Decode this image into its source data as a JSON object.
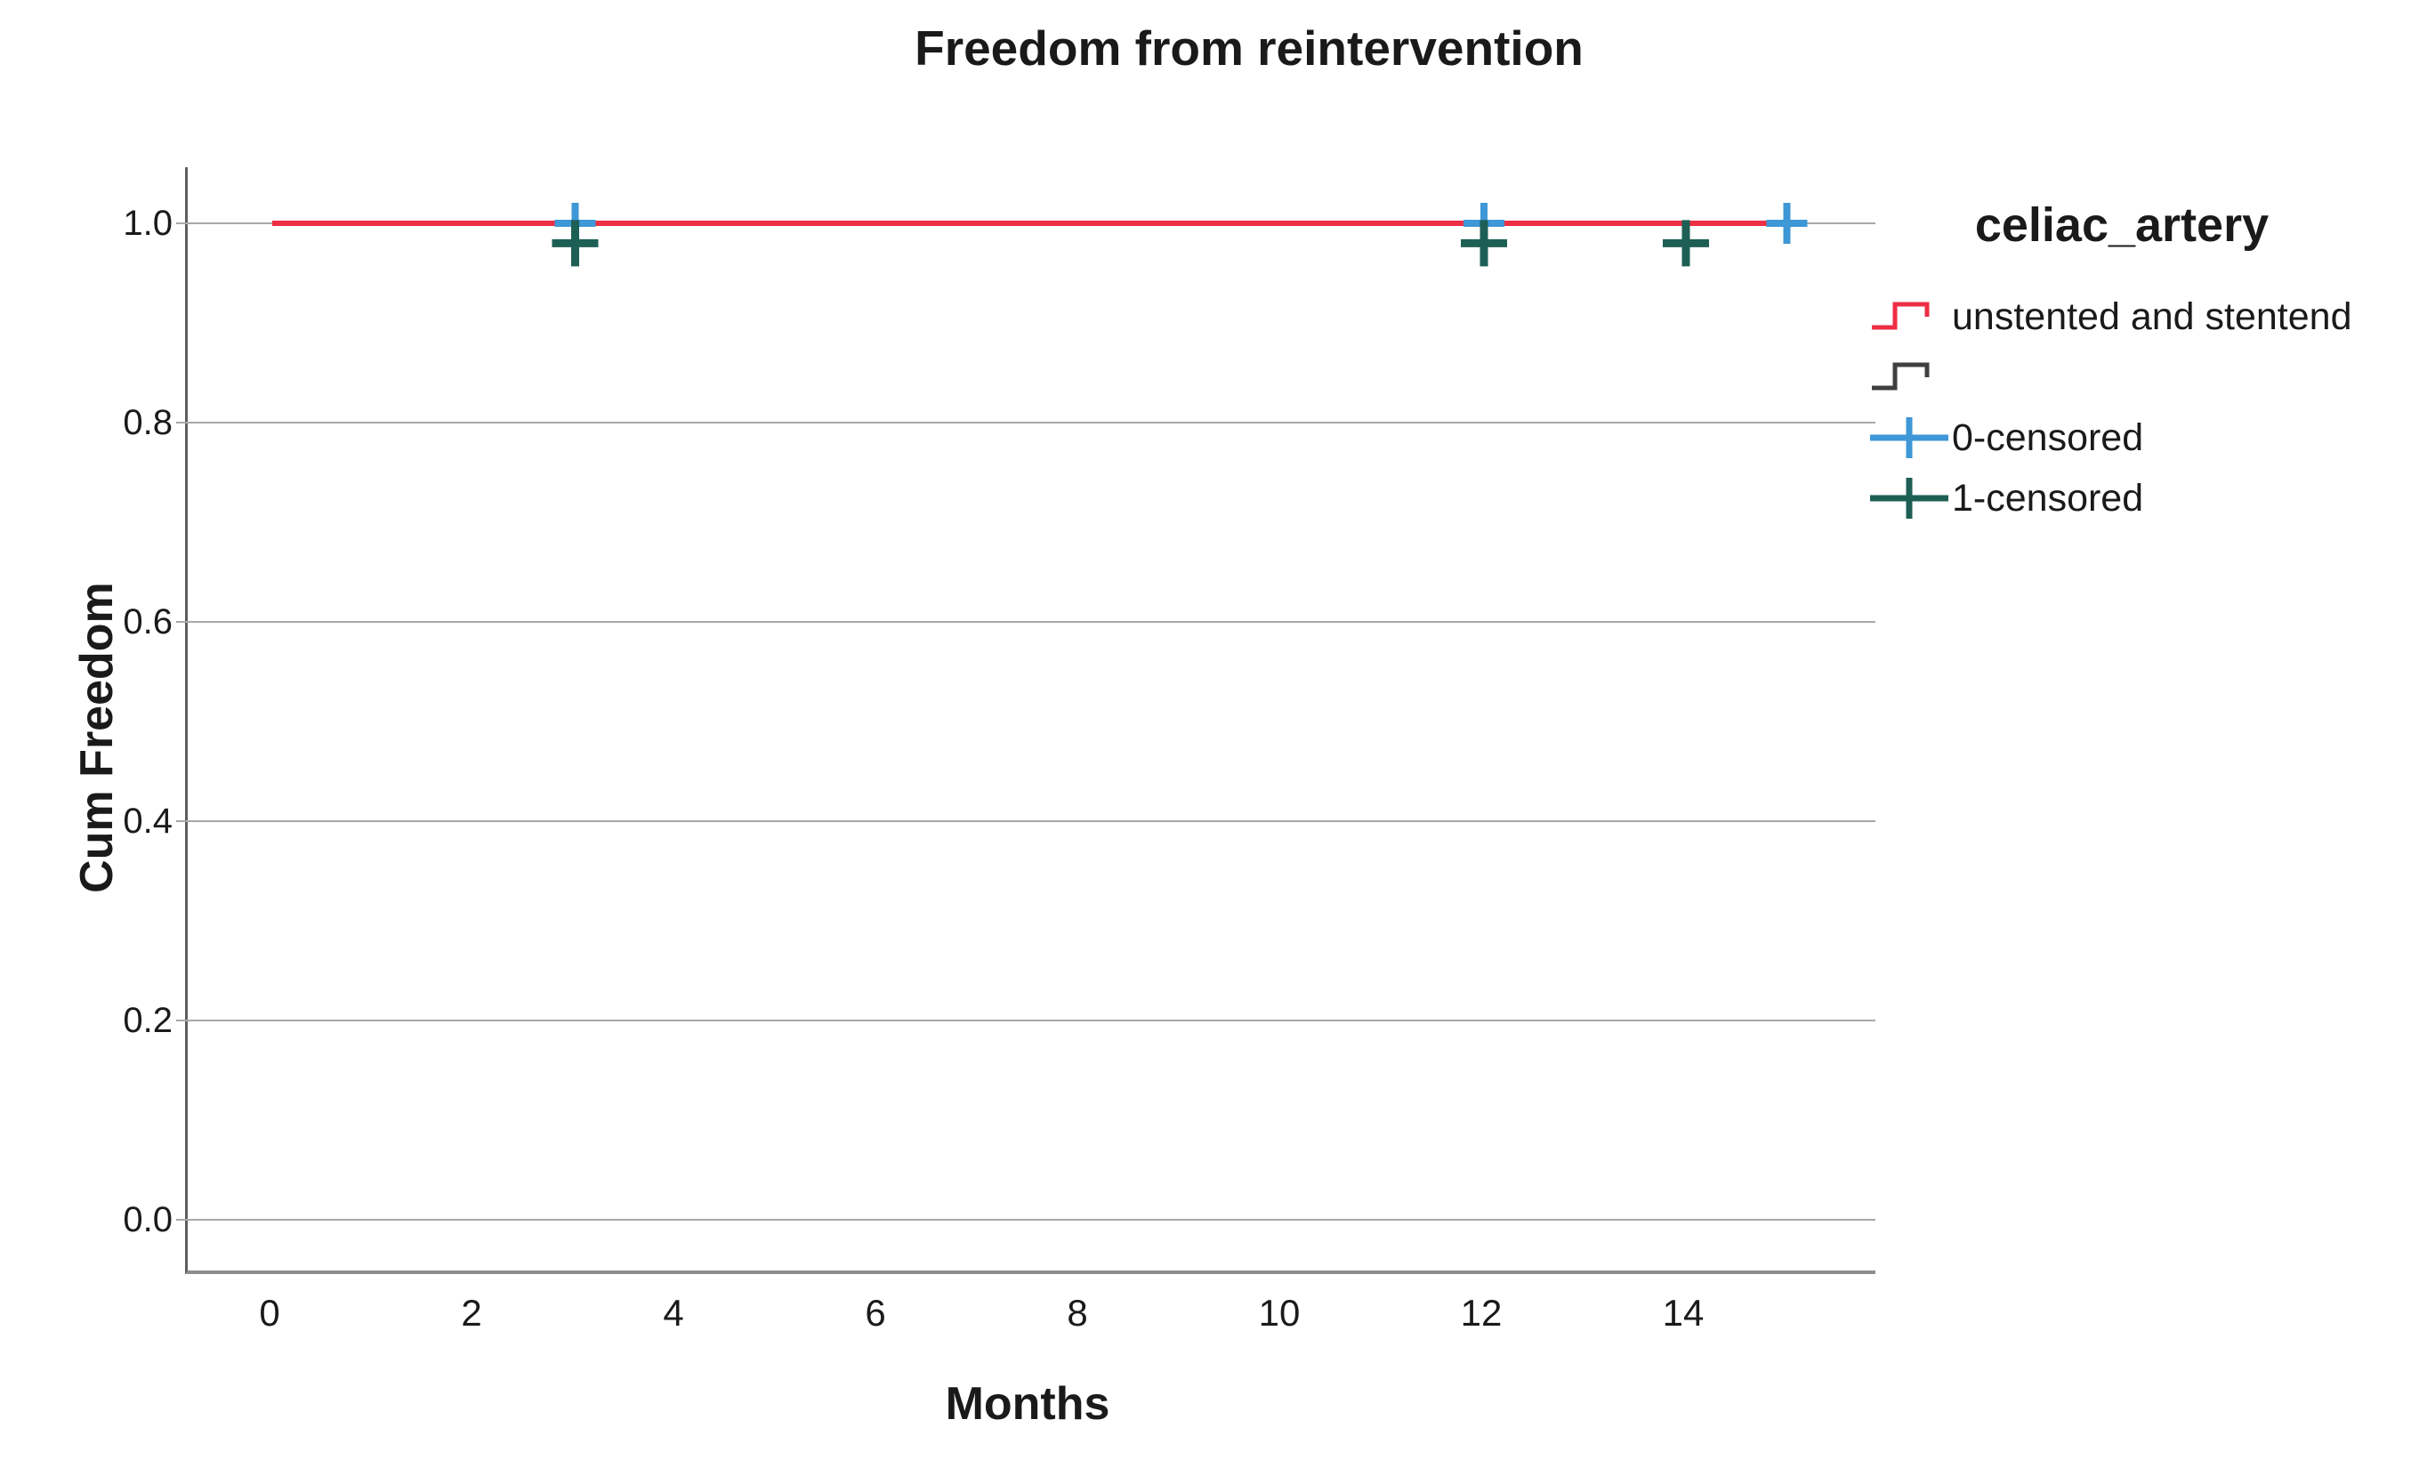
{
  "chart_data": {
    "type": "line",
    "subtype": "kaplan-meier-step",
    "title": "Freedom from reintervention",
    "xlabel": "Months",
    "ylabel": "Cum Freedom",
    "x_ticks": [
      0,
      2,
      4,
      6,
      8,
      10,
      12,
      14
    ],
    "y_ticks": [
      "1.0",
      "0.8",
      "0.6",
      "0.4",
      "0.2",
      "0.0"
    ],
    "xlim": [
      -0.85,
      15.9
    ],
    "ylim": [
      -0.05,
      1.06
    ],
    "grid": "horizontal",
    "colors": {
      "curve_red": "#ED2E44",
      "curve_dark": "#3F3F3F",
      "censor_blue": "#3E97D6",
      "censor_teal": "#1D5F55",
      "gridline_gray": "#A8A8A8"
    },
    "legend": {
      "title": "celiac_artery",
      "position": "right",
      "entries": [
        {
          "label": "unstented and stentend",
          "symbol": "step-line",
          "color": "#ED2E44"
        },
        {
          "label": "",
          "symbol": "step-line",
          "color": "#3F3F3F"
        },
        {
          "label": "0-censored",
          "symbol": "plus",
          "color": "#3E97D6"
        },
        {
          "label": "1-censored",
          "symbol": "plus",
          "color": "#1D5F55"
        }
      ]
    },
    "series": [
      {
        "name": "unstented and stentend",
        "color": "#ED2E44",
        "step": true,
        "x": [
          0,
          15
        ],
        "y": [
          1.0,
          1.0
        ]
      }
    ],
    "censored_points": [
      {
        "name": "0-censored",
        "color": "#3E97D6",
        "points": [
          {
            "x": 3,
            "y": 1.0
          },
          {
            "x": 12,
            "y": 1.0
          },
          {
            "x": 15,
            "y": 1.0
          }
        ]
      },
      {
        "name": "1-censored",
        "color": "#1D5F55",
        "points": [
          {
            "x": 3,
            "y": 0.98
          },
          {
            "x": 12,
            "y": 0.98
          },
          {
            "x": 14,
            "y": 0.98
          }
        ]
      }
    ]
  }
}
